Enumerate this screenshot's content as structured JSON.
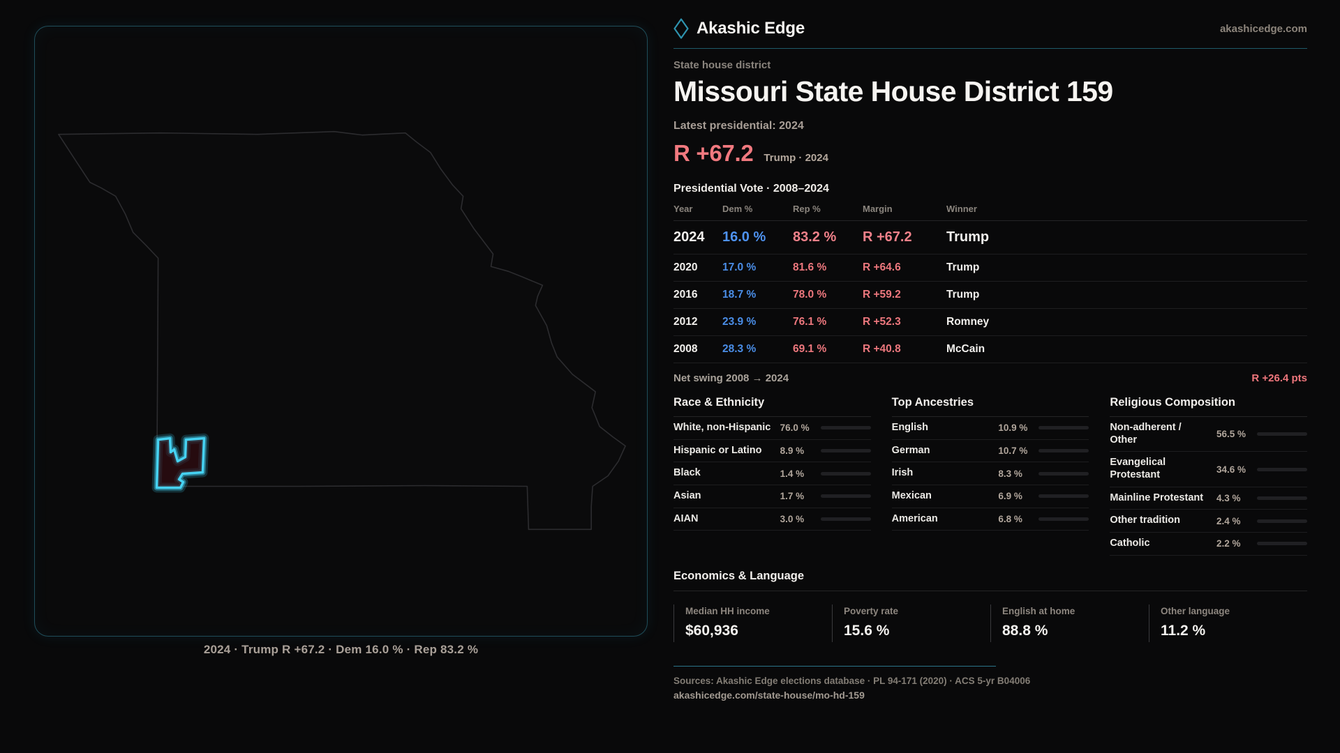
{
  "brand": {
    "name": "Akashic Edge",
    "site": "akashicedge.com"
  },
  "page": {
    "eyebrow": "State house district",
    "title": "Missouri State House District 159",
    "subtitle": "Latest presidential: 2024",
    "headline_margin": "R +67.2",
    "headline_context": "Trump · 2024",
    "table_title": "Presidential Vote · 2008–2024"
  },
  "colors": {
    "accent_teal": "#3ec9ea",
    "dem_blue": "#4a8de6",
    "rep_red": "#ec777d",
    "background": "#09090a"
  },
  "table": {
    "headers": [
      "Year",
      "Dem %",
      "Rep %",
      "Margin",
      "Winner"
    ],
    "rows": [
      {
        "year": "2024",
        "dem": "16.0 %",
        "rep": "83.2 %",
        "margin": "R +67.2",
        "winner": "Trump"
      },
      {
        "year": "2020",
        "dem": "17.0 %",
        "rep": "81.6 %",
        "margin": "R +64.6",
        "winner": "Trump"
      },
      {
        "year": "2016",
        "dem": "18.7 %",
        "rep": "78.0 %",
        "margin": "R +59.2",
        "winner": "Trump"
      },
      {
        "year": "2012",
        "dem": "23.9 %",
        "rep": "76.1 %",
        "margin": "R +52.3",
        "winner": "Romney"
      },
      {
        "year": "2008",
        "dem": "28.3 %",
        "rep": "69.1 %",
        "margin": "R +40.8",
        "winner": "McCain"
      }
    ]
  },
  "net_swing": {
    "label": "Net swing 2008 → 2024",
    "value": "R +26.4 pts"
  },
  "race": {
    "title": "Race & Ethnicity",
    "rows": [
      {
        "label": "White, non-Hispanic",
        "value": "76.0 %",
        "percent": 76.0,
        "color": "#a8bccf"
      },
      {
        "label": "Hispanic or Latino",
        "value": "8.9 %",
        "percent": 8.9,
        "color": "#e5a33c"
      },
      {
        "label": "Black",
        "value": "1.4 %",
        "percent": 1.4,
        "color": "#8f86e8"
      },
      {
        "label": "Asian",
        "value": "1.7 %",
        "percent": 1.7,
        "color": "#4ec996"
      },
      {
        "label": "AIAN",
        "value": "3.0 %",
        "percent": 3.0,
        "color": "#c9771f"
      }
    ]
  },
  "ancestries": {
    "title": "Top Ancestries",
    "rows": [
      {
        "label": "English",
        "value": "10.9 %",
        "percent": 10.9,
        "color": "#93aac6"
      },
      {
        "label": "German",
        "value": "10.7 %",
        "percent": 10.7,
        "color": "#93aac6"
      },
      {
        "label": "Irish",
        "value": "8.3 %",
        "percent": 8.3,
        "color": "#93aac6"
      },
      {
        "label": "Mexican",
        "value": "6.9 %",
        "percent": 6.9,
        "color": "#e5a32c"
      },
      {
        "label": "American",
        "value": "6.8 %",
        "percent": 6.8,
        "color": "#93aac6"
      }
    ]
  },
  "religion": {
    "title": "Religious Composition",
    "rows": [
      {
        "label": "Non-adherent / Other",
        "value": "56.5 %",
        "percent": 56.5,
        "color": "#6b7689"
      },
      {
        "label": "Evangelical Protestant",
        "value": "34.6 %",
        "percent": 34.6,
        "color": "#e2646b"
      },
      {
        "label": "Mainline Protestant",
        "value": "4.3 %",
        "percent": 4.3,
        "color": "#2f78e8"
      },
      {
        "label": "Other tradition",
        "value": "2.4 %",
        "percent": 2.4,
        "color": "#9aa0a8"
      },
      {
        "label": "Catholic",
        "value": "2.2 %",
        "percent": 2.2,
        "color": "#ddb02f"
      }
    ]
  },
  "economics": {
    "title": "Economics & Language",
    "stats": [
      {
        "label": "Median HH income",
        "value": "$60,936"
      },
      {
        "label": "Poverty rate",
        "value": "15.6 %"
      },
      {
        "label": "English at home",
        "value": "88.8 %"
      },
      {
        "label": "Other language",
        "value": "11.2 %"
      }
    ]
  },
  "map": {
    "caption": "2024 · Trump R +67.2 · Dem 16.0 % · Rep 83.2 %"
  },
  "footer": {
    "sources": "Sources: Akashic Edge elections database · PL 94-171 (2020) · ACS 5-yr B04006",
    "url": "akashicedge.com/state-house/mo-hd-159"
  }
}
